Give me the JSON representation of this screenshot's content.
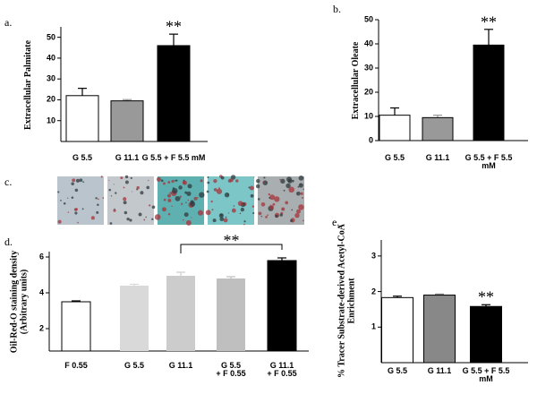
{
  "chart_data": [
    {
      "type": "bar",
      "label": "a.",
      "ylabel": "Extracellular Palmitate",
      "categories": [
        "G 5.5",
        "G 11.1",
        "G 5.5 + F 5.5 mM"
      ],
      "values": [
        22,
        19.5,
        46
      ],
      "errors": [
        3.5,
        0.6,
        5.5
      ],
      "colors": [
        "#ffffff",
        "#999999",
        "#000000"
      ],
      "ylim": [
        0,
        55
      ],
      "yticks": [
        10,
        20,
        30,
        40,
        50
      ],
      "annotation": "**"
    },
    {
      "type": "bar",
      "label": "b.",
      "ylabel": "Extracellular Oleate",
      "categories": [
        "G 5.5",
        "G 11.1",
        "G 5.5 + F 5.5 mM"
      ],
      "values": [
        10.5,
        9.5,
        39.5
      ],
      "errors": [
        3,
        1,
        6.5
      ],
      "colors": [
        "#ffffff",
        "#999999",
        "#000000"
      ],
      "ylim": [
        0,
        50
      ],
      "yticks": [
        0,
        10,
        20,
        30,
        40,
        50
      ],
      "annotation": "**"
    },
    {
      "type": "bar",
      "label": "d.",
      "ylabel": "Oil-Red-O staining density\n(Arbitrary units)",
      "categories": [
        "F 0.55",
        "G 5.5",
        "G 11.1",
        "G 5.5\n+ F 0.55",
        "G 11.1\n+ F 0.55"
      ],
      "values": [
        3.5,
        4.4,
        4.95,
        4.8,
        5.8
      ],
      "errors": [
        0.05,
        0.08,
        0.2,
        0.1,
        0.15
      ],
      "colors": [
        "#ffffff",
        "#d9d9d9",
        "#cccccc",
        "#bfbfbf",
        "#000000"
      ],
      "ylim": [
        0.75,
        6.3
      ],
      "yticks": [
        2,
        4,
        6
      ],
      "annotation": "**"
    },
    {
      "type": "bar",
      "label": "e.",
      "ylabel": "% Tracer Substrate-derived Acetyl-CoA\nEnrichment",
      "categories": [
        "G 5.5",
        "G 11.1",
        "G 5.5 + F 5.5 mM"
      ],
      "values": [
        1.83,
        1.9,
        1.58
      ],
      "errors": [
        0.04,
        0.03,
        0.05
      ],
      "colors": [
        "#ffffff",
        "#888888",
        "#000000"
      ],
      "ylim": [
        0,
        3.45
      ],
      "yticks": [
        1,
        2,
        3
      ],
      "annotation": "**"
    }
  ],
  "micrographs": {
    "label": "c."
  }
}
